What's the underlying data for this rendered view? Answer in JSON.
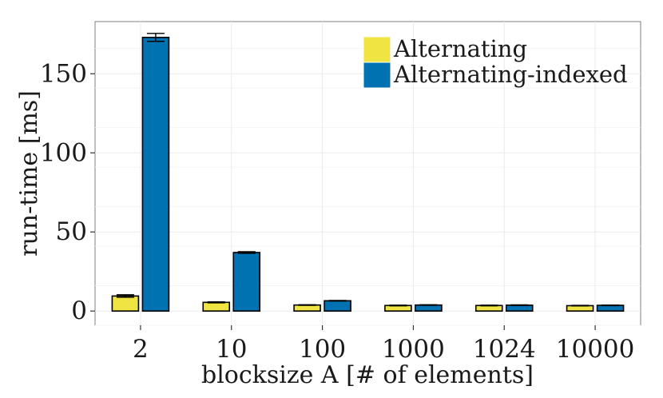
{
  "chart_data": {
    "type": "bar",
    "title": "",
    "xlabel": "blocksize A [# of elements]",
    "ylabel": "run-time [ms]",
    "categories": [
      "2",
      "10",
      "100",
      "1000",
      "1024",
      "10000"
    ],
    "yticks": [
      0,
      50,
      100,
      150
    ],
    "ylim": [
      -9,
      183
    ],
    "grid": true,
    "legend_position": "top-right",
    "series": [
      {
        "name": "Alternating",
        "color": "#f0e442",
        "values": [
          9.5,
          5.5,
          3.8,
          3.5,
          3.5,
          3.4
        ],
        "error": [
          0.8,
          0.3,
          0.2,
          0.2,
          0.2,
          0.2
        ]
      },
      {
        "name": "Alternating-indexed",
        "color": "#0072b2",
        "values": [
          173,
          37,
          6.5,
          3.8,
          3.7,
          3.6
        ],
        "error": [
          2.5,
          0.5,
          0.2,
          0.2,
          0.2,
          0.2
        ]
      }
    ]
  }
}
